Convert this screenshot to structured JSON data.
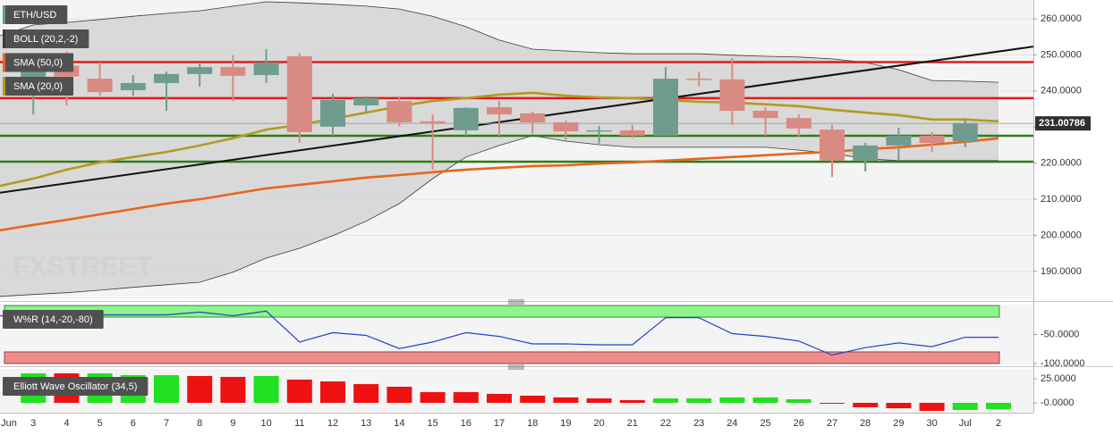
{
  "chart_data": [
    {
      "type": "candlestick",
      "title": "ETH/USD",
      "categories": [
        "Jun",
        "3",
        "4",
        "5",
        "6",
        "7",
        "8",
        "9",
        "10",
        "11",
        "12",
        "13",
        "14",
        "15",
        "16",
        "17",
        "18",
        "19",
        "20",
        "21",
        "22",
        "23",
        "24",
        "25",
        "26",
        "27",
        "28",
        "29",
        "30",
        "Jul",
        "2"
      ],
      "open": [
        null,
        241,
        247,
        243.4,
        240.2,
        242.2,
        244.7,
        246.6,
        244.4,
        249.6,
        230.1,
        236,
        237.2,
        231.6,
        229.1,
        235.5,
        233.8,
        231.3,
        228.8,
        229.1,
        227.6,
        243.4,
        243.2,
        234.5,
        232.5,
        229.3,
        220.7,
        224.9,
        227.6,
        226.1,
        null
      ],
      "high": [
        null,
        250,
        251,
        248,
        244.4,
        245.4,
        247.9,
        249.9,
        251.6,
        250.4,
        239.2,
        238.5,
        238.5,
        233.5,
        235.5,
        237.2,
        234.3,
        231.8,
        230.3,
        230.6,
        246.6,
        245.4,
        249.1,
        235.5,
        233.5,
        230.6,
        225.6,
        229.8,
        228.6,
        232.5,
        null
      ],
      "low": [
        null,
        233.5,
        236,
        238.7,
        238.7,
        234.5,
        241.2,
        237.2,
        242.2,
        225.6,
        227.6,
        234,
        230.1,
        218.2,
        227.6,
        227.6,
        228.1,
        226.4,
        225.4,
        226.9,
        227.6,
        241.2,
        230.6,
        227.6,
        227.4,
        216.2,
        217.7,
        220.7,
        223.1,
        224.4,
        null
      ],
      "close": [
        null,
        248,
        244,
        239.7,
        242.2,
        244.7,
        246.6,
        244.2,
        247.9,
        228.6,
        237.5,
        238,
        231.3,
        231.1,
        235.3,
        233.5,
        231.3,
        228.8,
        229.1,
        227.6,
        243.4,
        243.2,
        234.5,
        232.5,
        229.6,
        220.7,
        224.9,
        227.6,
        225.6,
        231.1,
        null
      ],
      "up_color": "#6f9c8e",
      "down_color": "#d98a82",
      "ylim": [
        182.3,
        265.2
      ],
      "yticks": [
        {
          "value": 190,
          "label": "190.0000"
        },
        {
          "value": 200,
          "label": "200.0000"
        },
        {
          "value": 210,
          "label": "210.0000"
        },
        {
          "value": 220,
          "label": "220.0000"
        },
        {
          "value": 230,
          "label": "230.0000"
        },
        {
          "value": 240,
          "label": "240.0000"
        },
        {
          "value": 250,
          "label": "250.0000"
        },
        {
          "value": 260,
          "label": "260.0000"
        }
      ],
      "grid": true,
      "last_price": 231.00786,
      "overlays": [
        {
          "name": "BOLL (20,2,-2)",
          "type": "band",
          "color": "#3a3a3a",
          "fill": "#d4d4d4",
          "upper": [
            255.3,
            258.3,
            259.0,
            259.8,
            260.7,
            261.5,
            262.2,
            263.5,
            264.7,
            264.4,
            264.0,
            263.5,
            262.7,
            260.7,
            257.8,
            254.1,
            251.6,
            251.1,
            250.6,
            250.3,
            250.3,
            250.3,
            249.9,
            249.6,
            249.4,
            248.9,
            247.9,
            245.9,
            242.9,
            242.7,
            242.4
          ],
          "lower": [
            183.1,
            183.6,
            184.1,
            184.8,
            185.6,
            186.3,
            187.0,
            189.8,
            193.7,
            196.4,
            199.9,
            203.9,
            208.8,
            215.7,
            221.7,
            224.9,
            227.6,
            226.1,
            225.1,
            224.4,
            224.4,
            224.4,
            224.4,
            224.4,
            223.6,
            222.7,
            221.2,
            220.7,
            220.7,
            220.7,
            220.7
          ]
        },
        {
          "name": "SMA (50,0)",
          "type": "line",
          "color": "#e8661c",
          "values": [
            201.4,
            202.9,
            204.3,
            205.8,
            207.3,
            208.8,
            210.0,
            211.5,
            213.0,
            214.0,
            215.0,
            216.0,
            216.7,
            217.5,
            218.2,
            218.7,
            219.2,
            219.4,
            219.9,
            220.2,
            220.7,
            221.2,
            221.7,
            222.2,
            222.7,
            223.1,
            223.9,
            224.4,
            225.1,
            225.9,
            226.9
          ]
        },
        {
          "name": "SMA (20,0)",
          "type": "line",
          "color": "#b39a22",
          "values": [
            213.7,
            215.7,
            218.2,
            220.2,
            221.7,
            223.1,
            224.9,
            226.9,
            229.3,
            230.6,
            232.3,
            234.0,
            235.8,
            237.2,
            238.0,
            239.0,
            239.5,
            238.7,
            238.2,
            238.0,
            237.5,
            237.0,
            236.8,
            236.3,
            235.8,
            234.8,
            234.0,
            233.3,
            232.1,
            232.1,
            231.6
          ]
        }
      ],
      "levels": [
        {
          "value": 248,
          "color": "#e01b1b"
        },
        {
          "value": 238,
          "color": "#e01b1b"
        },
        {
          "value": 227.6,
          "color": "#2f7d12"
        },
        {
          "value": 220.4,
          "color": "#2f7d12"
        }
      ],
      "trendline": {
        "start": 211.8,
        "end": 252.3,
        "color": "#111111"
      },
      "watermark": "FXSTREET"
    },
    {
      "type": "line",
      "title": "W%R (14,-20,-80)",
      "color": "#2441c9",
      "values": [
        -17.7,
        -17.7,
        -14.5,
        -16.1,
        -16.1,
        -16.1,
        -11.3,
        -17.7,
        -9.7,
        -62.9,
        -46.8,
        -51.6,
        -74.2,
        -62.9,
        -46.8,
        -53.2,
        -66.1,
        -66.1,
        -67.7,
        -67.7,
        -21.0,
        -21.0,
        -48.4,
        -53.2,
        -61.3,
        -85.5,
        -72.6,
        -64.5,
        -71.0,
        -54.8,
        -54.8
      ],
      "overbought": -20,
      "oversold": -80,
      "overbought_color": "#8ef58a",
      "oversold_color": "#f28c8c",
      "ylim": [
        -101.6,
        1.6
      ],
      "yticks": [
        {
          "value": -50,
          "label": "-50.0000"
        },
        {
          "value": -100,
          "label": "-100.0000"
        }
      ]
    },
    {
      "type": "bar",
      "title": "Elliott Wave Oscillator (34,5)",
      "values": [
        null,
        30.6,
        30.6,
        30.6,
        28.7,
        28.7,
        27.8,
        26.9,
        27.8,
        24.1,
        22.2,
        19.4,
        16.7,
        11.1,
        11.1,
        9.3,
        7.4,
        5.6,
        4.6,
        2.8,
        4.6,
        4.6,
        5.6,
        5.6,
        3.7,
        -0.9,
        -4.6,
        -5.6,
        -8.3,
        -7.4,
        -6.5
      ],
      "colors": [
        null,
        "#22e022",
        "#ee1111",
        "#22e022",
        "#22e022",
        "#22e022",
        "#ee1111",
        "#ee1111",
        "#22e022",
        "#ee1111",
        "#ee1111",
        "#ee1111",
        "#ee1111",
        "#ee1111",
        "#ee1111",
        "#ee1111",
        "#ee1111",
        "#ee1111",
        "#ee1111",
        "#ee1111",
        "#22e022",
        "#22e022",
        "#22e022",
        "#22e022",
        "#22e022",
        "#ee1111",
        "#ee1111",
        "#ee1111",
        "#ee1111",
        "#22e022",
        "#22e022"
      ],
      "ylim": [
        -10.2,
        35.2
      ],
      "yticks": [
        {
          "value": 25,
          "label": "25.0000"
        },
        {
          "value": 0,
          "label": "-0.0000"
        }
      ]
    }
  ]
}
